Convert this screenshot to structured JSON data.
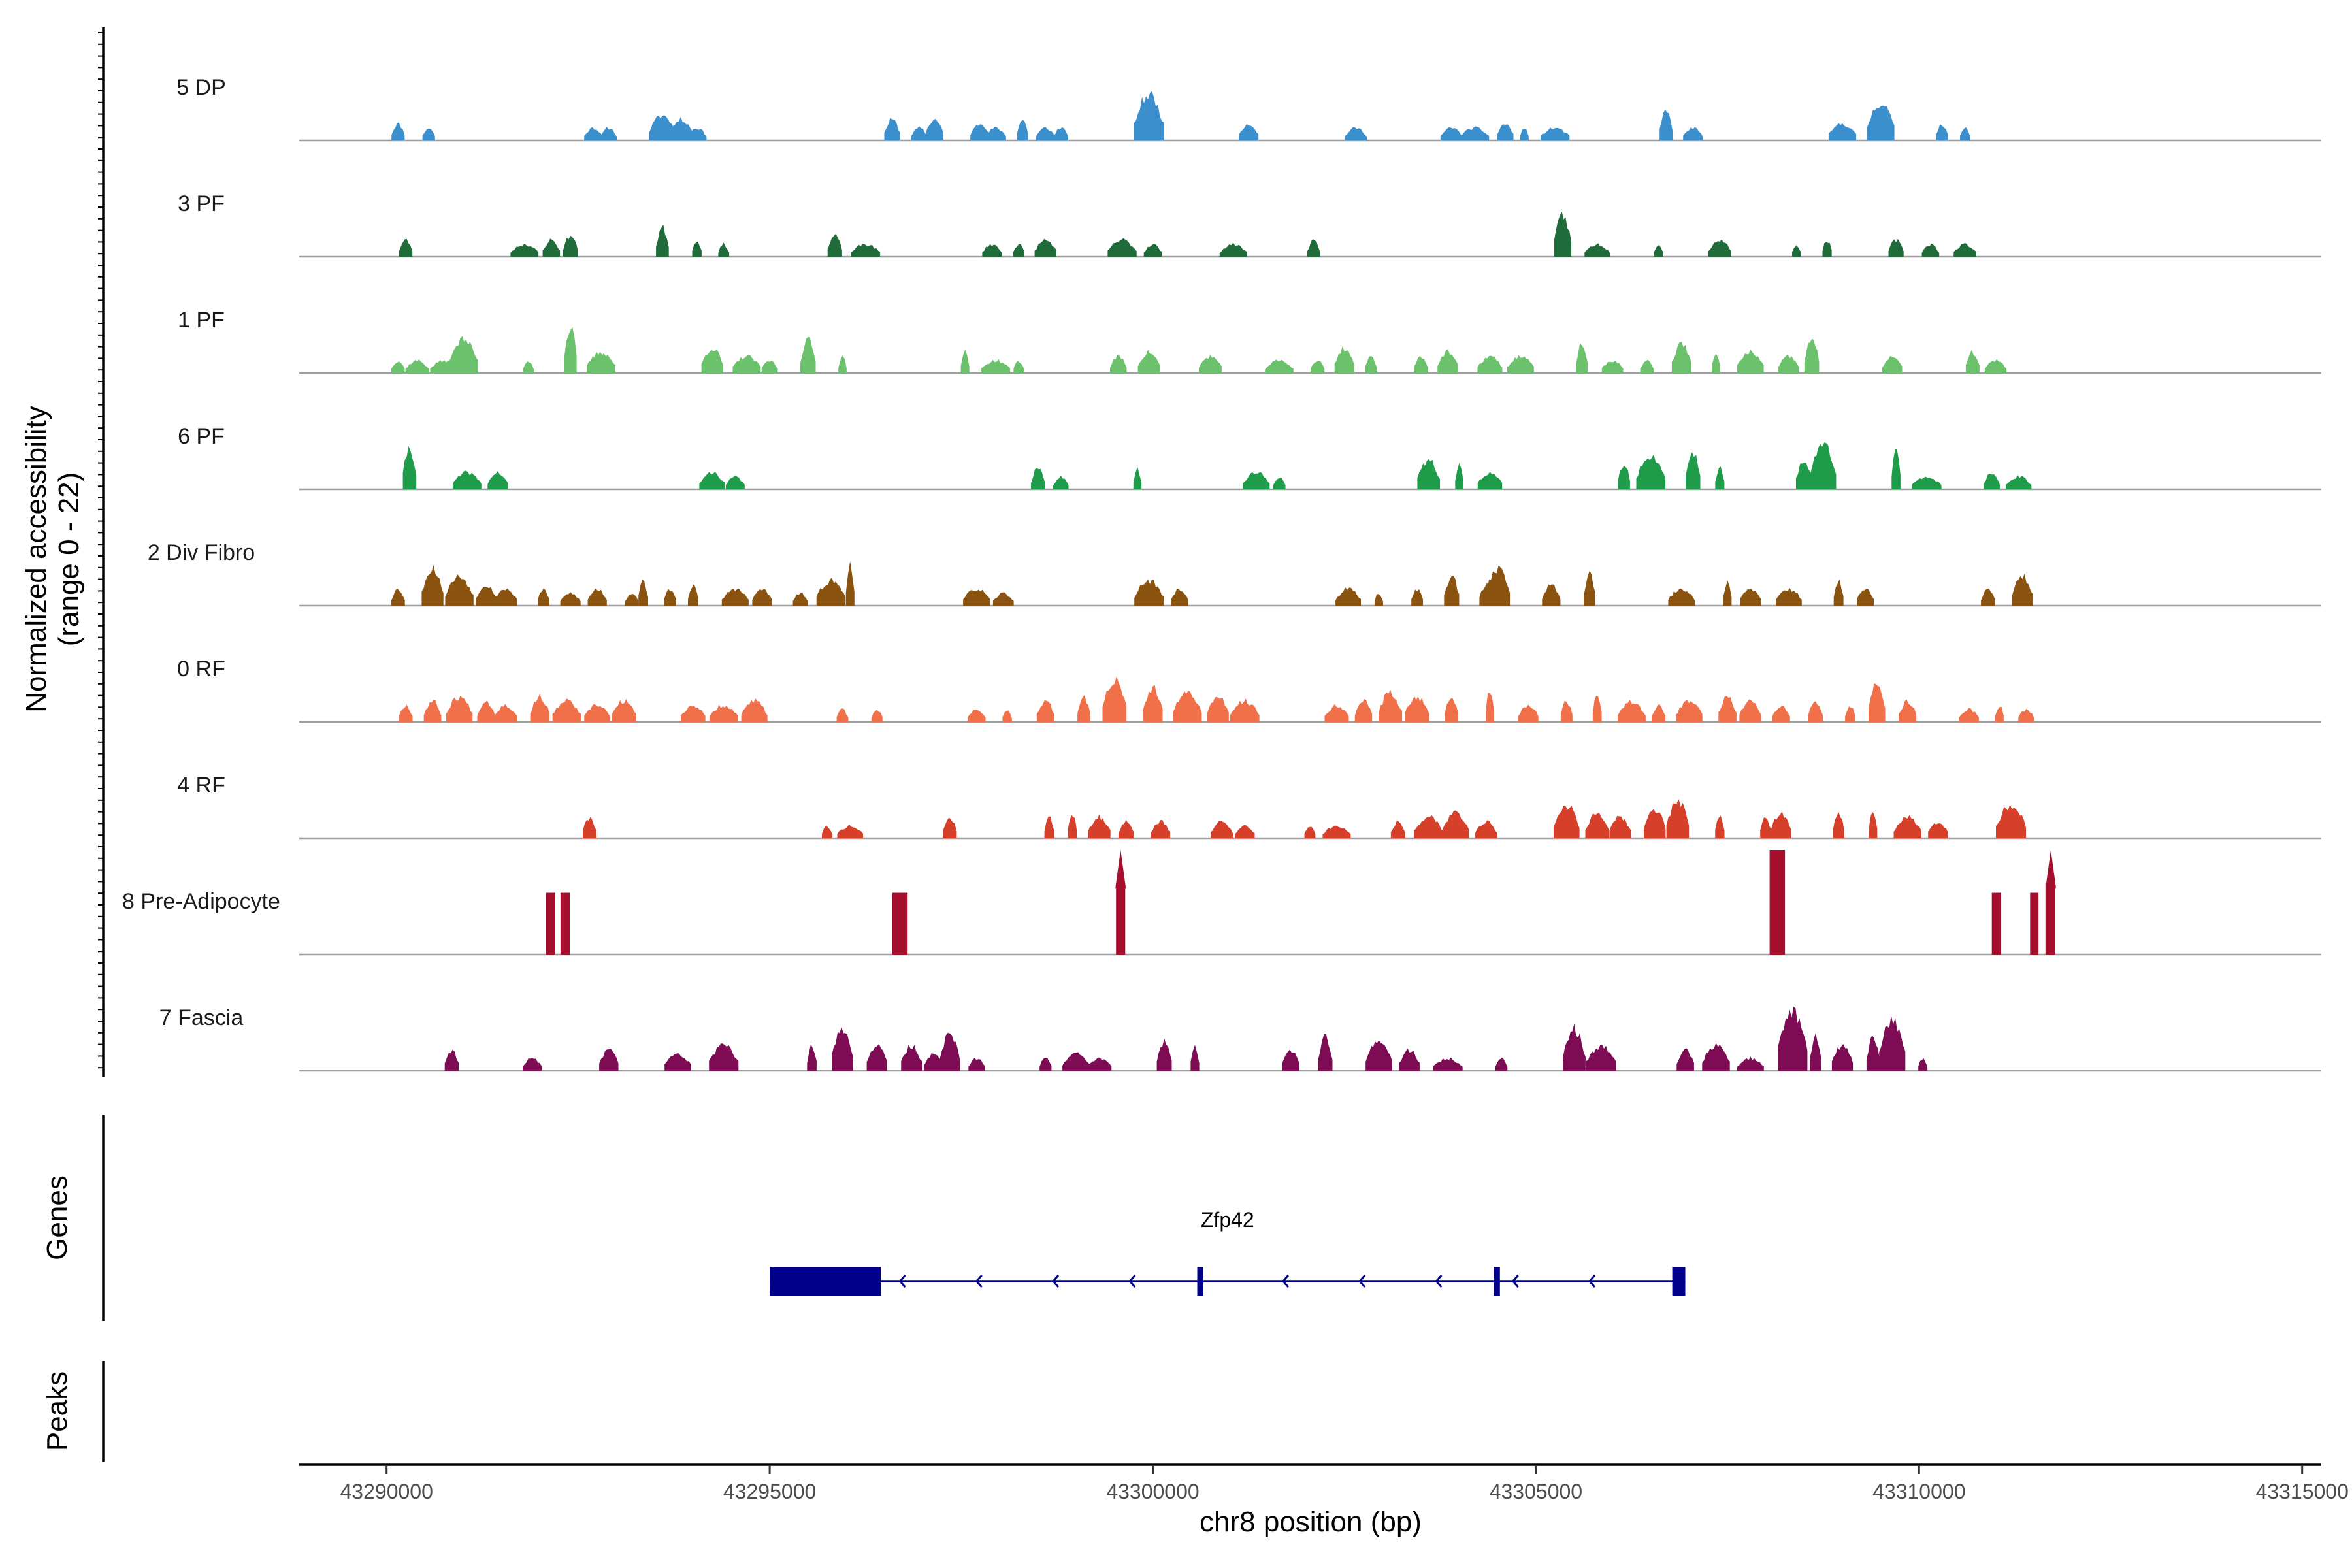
{
  "chart_data": {
    "type": "area",
    "subtype": "genome-coverage-tracks",
    "ylabel_line1": "Normalized accessibility",
    "ylabel_line2": "(range 0 - 22)",
    "ylim": [
      0,
      22
    ],
    "xlabel": "chr8 position (bp)",
    "xlim": [
      43288860,
      43315250
    ],
    "xticks": [
      43290000,
      43295000,
      43300000,
      43305000,
      43310000,
      43315000
    ],
    "xtick_labels": [
      "43290000",
      "43295000",
      "43300000",
      "43305000",
      "43310000",
      "43315000"
    ],
    "panel_labels": {
      "genes": "Genes",
      "peaks": "Peaks"
    },
    "tracks": [
      {
        "name": "5 DP",
        "color": "#3b8fcc",
        "seed": 11,
        "peaks": [
          [
            43290150,
            4
          ],
          [
            43290550,
            3
          ],
          [
            43292700,
            3
          ],
          [
            43292900,
            3
          ],
          [
            43293600,
            6
          ],
          [
            43293850,
            5
          ],
          [
            43294050,
            3
          ],
          [
            43296600,
            5
          ],
          [
            43296950,
            3
          ],
          [
            43297150,
            5
          ],
          [
            43297750,
            4
          ],
          [
            43297950,
            3
          ],
          [
            43298300,
            5
          ],
          [
            43298600,
            3
          ],
          [
            43298800,
            3
          ],
          [
            43299950,
            11
          ],
          [
            43301250,
            4
          ],
          [
            43302650,
            3
          ],
          [
            43303900,
            3
          ],
          [
            43304200,
            3
          ],
          [
            43304600,
            4
          ],
          [
            43304850,
            3
          ],
          [
            43305250,
            3
          ],
          [
            43306700,
            7
          ],
          [
            43307050,
            3
          ],
          [
            43309000,
            4
          ],
          [
            43309500,
            9
          ],
          [
            43310300,
            4
          ],
          [
            43310600,
            3
          ]
        ]
      },
      {
        "name": "3 PF",
        "color": "#1f6b3a",
        "seed": 23,
        "peaks": [
          [
            43290250,
            4
          ],
          [
            43291800,
            3
          ],
          [
            43292150,
            4
          ],
          [
            43292400,
            5
          ],
          [
            43293600,
            7
          ],
          [
            43294050,
            4
          ],
          [
            43294400,
            3
          ],
          [
            43295850,
            5
          ],
          [
            43296250,
            3
          ],
          [
            43297900,
            3
          ],
          [
            43298250,
            3
          ],
          [
            43298600,
            4
          ],
          [
            43299600,
            4
          ],
          [
            43300000,
            3
          ],
          [
            43301050,
            3
          ],
          [
            43302100,
            4
          ],
          [
            43305350,
            10
          ],
          [
            43305800,
            3
          ],
          [
            43306600,
            3
          ],
          [
            43307400,
            4
          ],
          [
            43308400,
            3
          ],
          [
            43308800,
            4
          ],
          [
            43309700,
            4
          ],
          [
            43310150,
            3
          ],
          [
            43310600,
            3
          ]
        ]
      },
      {
        "name": "1 PF",
        "color": "#6cc26c",
        "seed": 37,
        "peaks": [
          [
            43290150,
            3
          ],
          [
            43290400,
            3
          ],
          [
            43290750,
            3
          ],
          [
            43291000,
            8
          ],
          [
            43291850,
            3
          ],
          [
            43292400,
            11
          ],
          [
            43292800,
            5
          ],
          [
            43294250,
            6
          ],
          [
            43294700,
            4
          ],
          [
            43295000,
            3
          ],
          [
            43295500,
            8
          ],
          [
            43295950,
            4
          ],
          [
            43297550,
            5
          ],
          [
            43297950,
            3
          ],
          [
            43298250,
            3
          ],
          [
            43299550,
            4
          ],
          [
            43299950,
            5
          ],
          [
            43300750,
            4
          ],
          [
            43301650,
            3
          ],
          [
            43302150,
            3
          ],
          [
            43302500,
            6
          ],
          [
            43302850,
            4
          ],
          [
            43303500,
            4
          ],
          [
            43303850,
            5
          ],
          [
            43304400,
            4
          ],
          [
            43304800,
            4
          ],
          [
            43305600,
            7
          ],
          [
            43306000,
            3
          ],
          [
            43306450,
            3
          ],
          [
            43306900,
            7
          ],
          [
            43307350,
            5
          ],
          [
            43307800,
            5
          ],
          [
            43308300,
            4
          ],
          [
            43308600,
            8
          ],
          [
            43309650,
            4
          ],
          [
            43310700,
            5
          ],
          [
            43311000,
            3
          ]
        ]
      },
      {
        "name": "6 PF",
        "color": "#1e9c4a",
        "seed": 41,
        "peaks": [
          [
            43290300,
            10
          ],
          [
            43291050,
            4
          ],
          [
            43291450,
            4
          ],
          [
            43294250,
            4
          ],
          [
            43294550,
            3
          ],
          [
            43298500,
            5
          ],
          [
            43298800,
            3
          ],
          [
            43299800,
            5
          ],
          [
            43301350,
            4
          ],
          [
            43301650,
            3
          ],
          [
            43303600,
            7
          ],
          [
            43304000,
            6
          ],
          [
            43304400,
            4
          ],
          [
            43306150,
            6
          ],
          [
            43306500,
            8
          ],
          [
            43307050,
            9
          ],
          [
            43307400,
            5
          ],
          [
            43308500,
            7
          ],
          [
            43308750,
            11
          ],
          [
            43309700,
            10
          ],
          [
            43310100,
            3
          ],
          [
            43310950,
            4
          ],
          [
            43311300,
            3
          ]
        ]
      },
      {
        "name": "2 Div Fibro",
        "color": "#8a5410",
        "seed": 53,
        "peaks": [
          [
            43290150,
            4
          ],
          [
            43290600,
            9
          ],
          [
            43290950,
            7
          ],
          [
            43291300,
            5
          ],
          [
            43291550,
            4
          ],
          [
            43292050,
            4
          ],
          [
            43292400,
            3
          ],
          [
            43292750,
            4
          ],
          [
            43293200,
            3
          ],
          [
            43293350,
            6
          ],
          [
            43293700,
            4
          ],
          [
            43294000,
            5
          ],
          [
            43294550,
            4
          ],
          [
            43294900,
            4
          ],
          [
            43295400,
            3
          ],
          [
            43295800,
            6
          ],
          [
            43296050,
            10
          ],
          [
            43297700,
            4
          ],
          [
            43298050,
            3
          ],
          [
            43299950,
            6
          ],
          [
            43300350,
            4
          ],
          [
            43302550,
            4
          ],
          [
            43302950,
            3
          ],
          [
            43303450,
            4
          ],
          [
            43303900,
            7
          ],
          [
            43304350,
            5
          ],
          [
            43304500,
            9
          ],
          [
            43305200,
            5
          ],
          [
            43305700,
            8
          ],
          [
            43306900,
            4
          ],
          [
            43307500,
            6
          ],
          [
            43307800,
            4
          ],
          [
            43308300,
            4
          ],
          [
            43308950,
            6
          ],
          [
            43309300,
            4
          ],
          [
            43310900,
            4
          ],
          [
            43311350,
            7
          ]
        ]
      },
      {
        "name": "0 RF",
        "color": "#f0704a",
        "seed": 67,
        "peaks": [
          [
            43290250,
            4
          ],
          [
            43290600,
            5
          ],
          [
            43290950,
            6
          ],
          [
            43291300,
            5
          ],
          [
            43291550,
            4
          ],
          [
            43292000,
            6
          ],
          [
            43292350,
            5
          ],
          [
            43292750,
            4
          ],
          [
            43293100,
            5
          ],
          [
            43294000,
            4
          ],
          [
            43294400,
            4
          ],
          [
            43294800,
            5
          ],
          [
            43295950,
            3
          ],
          [
            43296400,
            3
          ],
          [
            43297700,
            3
          ],
          [
            43298100,
            3
          ],
          [
            43298600,
            5
          ],
          [
            43299100,
            6
          ],
          [
            43299500,
            10
          ],
          [
            43300000,
            8
          ],
          [
            43300450,
            7
          ],
          [
            43300850,
            6
          ],
          [
            43301200,
            5
          ],
          [
            43302400,
            4
          ],
          [
            43302750,
            5
          ],
          [
            43303100,
            7
          ],
          [
            43303450,
            6
          ],
          [
            43303900,
            6
          ],
          [
            43304400,
            8
          ],
          [
            43304900,
            4
          ],
          [
            43305400,
            5
          ],
          [
            43305800,
            7
          ],
          [
            43306250,
            5
          ],
          [
            43306600,
            4
          ],
          [
            43307000,
            5
          ],
          [
            43307500,
            6
          ],
          [
            43307800,
            5
          ],
          [
            43308200,
            4
          ],
          [
            43308650,
            5
          ],
          [
            43309100,
            4
          ],
          [
            43309450,
            9
          ],
          [
            43309850,
            5
          ],
          [
            43310650,
            3
          ],
          [
            43311050,
            4
          ],
          [
            43311400,
            3
          ]
        ]
      },
      {
        "name": "4 RF",
        "color": "#d6402a",
        "seed": 79,
        "peaks": [
          [
            43292650,
            5
          ],
          [
            43295750,
            3
          ],
          [
            43296050,
            3
          ],
          [
            43297350,
            5
          ],
          [
            43298650,
            5
          ],
          [
            43298950,
            6
          ],
          [
            43299300,
            5
          ],
          [
            43299650,
            4
          ],
          [
            43300100,
            4
          ],
          [
            43300900,
            4
          ],
          [
            43301200,
            3
          ],
          [
            43302050,
            3
          ],
          [
            43302400,
            3
          ],
          [
            43303200,
            4
          ],
          [
            43303600,
            5
          ],
          [
            43303950,
            6
          ],
          [
            43304350,
            4
          ],
          [
            43305400,
            8
          ],
          [
            43305800,
            6
          ],
          [
            43306100,
            5
          ],
          [
            43306550,
            7
          ],
          [
            43306850,
            9
          ],
          [
            43307400,
            5
          ],
          [
            43308000,
            5
          ],
          [
            43308200,
            6
          ],
          [
            43308950,
            6
          ],
          [
            43309400,
            7
          ],
          [
            43309850,
            5
          ],
          [
            43310250,
            4
          ],
          [
            43311200,
            8
          ]
        ]
      },
      {
        "name": "8 Pre-Adipocyte",
        "color": "#a50f2d",
        "seed": 91,
        "blocks": [
          [
            43292080,
            43292200,
            13
          ],
          [
            43292270,
            43292390,
            13
          ],
          [
            43296600,
            43296800,
            13
          ],
          [
            43299520,
            43299640,
            15
          ],
          [
            43308050,
            43308250,
            22
          ],
          [
            43310950,
            43311070,
            13
          ],
          [
            43311450,
            43311560,
            13
          ],
          [
            43311650,
            43311780,
            15
          ]
        ],
        "spikes": [
          [
            43299580,
            22
          ],
          [
            43311720,
            22
          ]
        ]
      },
      {
        "name": "7 Fascia",
        "color": "#7d0c55",
        "seed": 103,
        "peaks": [
          [
            43290850,
            5
          ],
          [
            43291900,
            3
          ],
          [
            43292900,
            5
          ],
          [
            43293800,
            4
          ],
          [
            43294400,
            6
          ],
          [
            43295550,
            6
          ],
          [
            43295950,
            10
          ],
          [
            43296400,
            6
          ],
          [
            43296850,
            6
          ],
          [
            43297150,
            4
          ],
          [
            43297350,
            9
          ],
          [
            43297700,
            3
          ],
          [
            43298600,
            3
          ],
          [
            43299000,
            4
          ],
          [
            43299300,
            3
          ],
          [
            43300150,
            7
          ],
          [
            43300550,
            6
          ],
          [
            43301800,
            5
          ],
          [
            43302250,
            8
          ],
          [
            43302950,
            7
          ],
          [
            43303350,
            5
          ],
          [
            43303850,
            3
          ],
          [
            43304550,
            3
          ],
          [
            43305500,
            10
          ],
          [
            43305850,
            6
          ],
          [
            43306950,
            5
          ],
          [
            43307350,
            6
          ],
          [
            43307800,
            3
          ],
          [
            43308350,
            14
          ],
          [
            43308650,
            8
          ],
          [
            43309000,
            6
          ],
          [
            43309400,
            8
          ],
          [
            43309650,
            12
          ],
          [
            43310050,
            3
          ]
        ]
      }
    ],
    "gene": {
      "name": "Zfp42",
      "strand": "-",
      "start": 43295000,
      "end": 43306950,
      "exons": [
        [
          43295000,
          43296450,
          "thick"
        ],
        [
          43300580,
          43300660,
          "thin"
        ],
        [
          43304450,
          43304530,
          "thin"
        ],
        [
          43306780,
          43306950,
          "thin"
        ]
      ]
    }
  },
  "colors": {
    "gene": "#00008b",
    "baseline": "#9e9e9e",
    "axis": "#000000"
  }
}
